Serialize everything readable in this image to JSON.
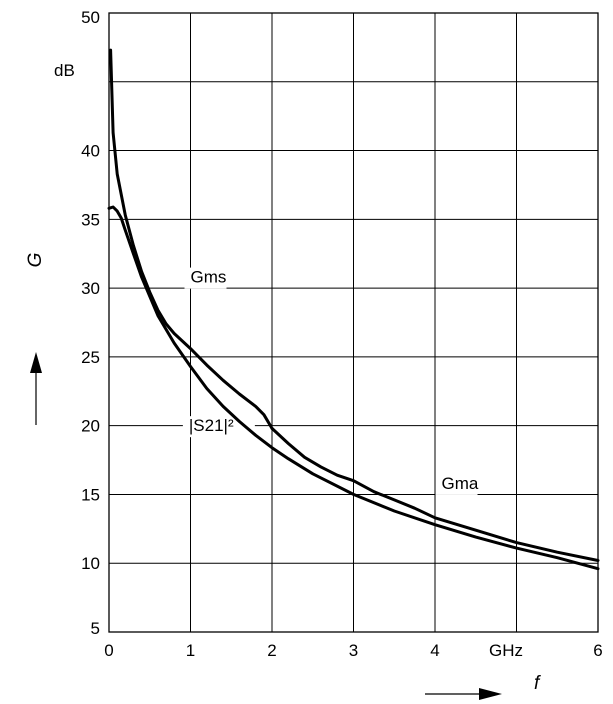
{
  "chart_data": {
    "type": "line",
    "title": "",
    "xlabel": "f",
    "ylabel": "G",
    "x_unit": "GHz",
    "y_unit": "dB",
    "xlim": [
      0,
      6
    ],
    "ylim": [
      5,
      50
    ],
    "x_ticks": [
      "0",
      "1",
      "2",
      "3",
      "4",
      "6"
    ],
    "y_ticks": [
      "5",
      "10",
      "15",
      "20",
      "25",
      "30",
      "35",
      "40",
      "45",
      "50"
    ],
    "grid": true,
    "series": [
      {
        "name": "Gms",
        "x": [
          0.02,
          0.05,
          0.1,
          0.2,
          0.3,
          0.4,
          0.5,
          0.6,
          0.7,
          0.8,
          1.0,
          1.2,
          1.4,
          1.6,
          1.8,
          1.9,
          2.0
        ],
        "y": [
          47.3,
          41.3,
          38.3,
          35.3,
          33.1,
          31.2,
          29.7,
          28.4,
          27.4,
          26.7,
          25.6,
          24.4,
          23.3,
          22.3,
          21.4,
          20.8,
          19.8
        ]
      },
      {
        "name": "Gma",
        "x": [
          2.0,
          2.2,
          2.4,
          2.6,
          2.8,
          3.0,
          3.25,
          3.5,
          3.75,
          4.0,
          4.5,
          5.0,
          5.5,
          6.0
        ],
        "y": [
          19.8,
          18.7,
          17.7,
          17.0,
          16.4,
          16.0,
          15.2,
          14.6,
          14.0,
          13.3,
          12.4,
          11.5,
          10.8,
          10.2
        ]
      },
      {
        "name": "|S21|²",
        "x": [
          0.0,
          0.05,
          0.1,
          0.15,
          0.2,
          0.3,
          0.4,
          0.5,
          0.6,
          0.8,
          1.0,
          1.2,
          1.4,
          1.6,
          1.8,
          2.0,
          2.2,
          2.5,
          3.0,
          3.5,
          4.0,
          4.5,
          5.0,
          5.5,
          6.0
        ],
        "y": [
          35.8,
          35.9,
          35.6,
          35.1,
          34.2,
          32.5,
          30.8,
          29.4,
          28.0,
          26.0,
          24.3,
          22.7,
          21.4,
          20.3,
          19.3,
          18.4,
          17.6,
          16.5,
          15.0,
          13.8,
          12.8,
          11.9,
          11.1,
          10.4,
          9.6
        ]
      }
    ],
    "annotations": [
      {
        "text": "Gms",
        "x": 1.0,
        "y": 30.4
      },
      {
        "text": "|S21|²",
        "x": 0.98,
        "y": 19.6
      },
      {
        "text": "Gma",
        "x": 4.08,
        "y": 15.4
      }
    ]
  }
}
